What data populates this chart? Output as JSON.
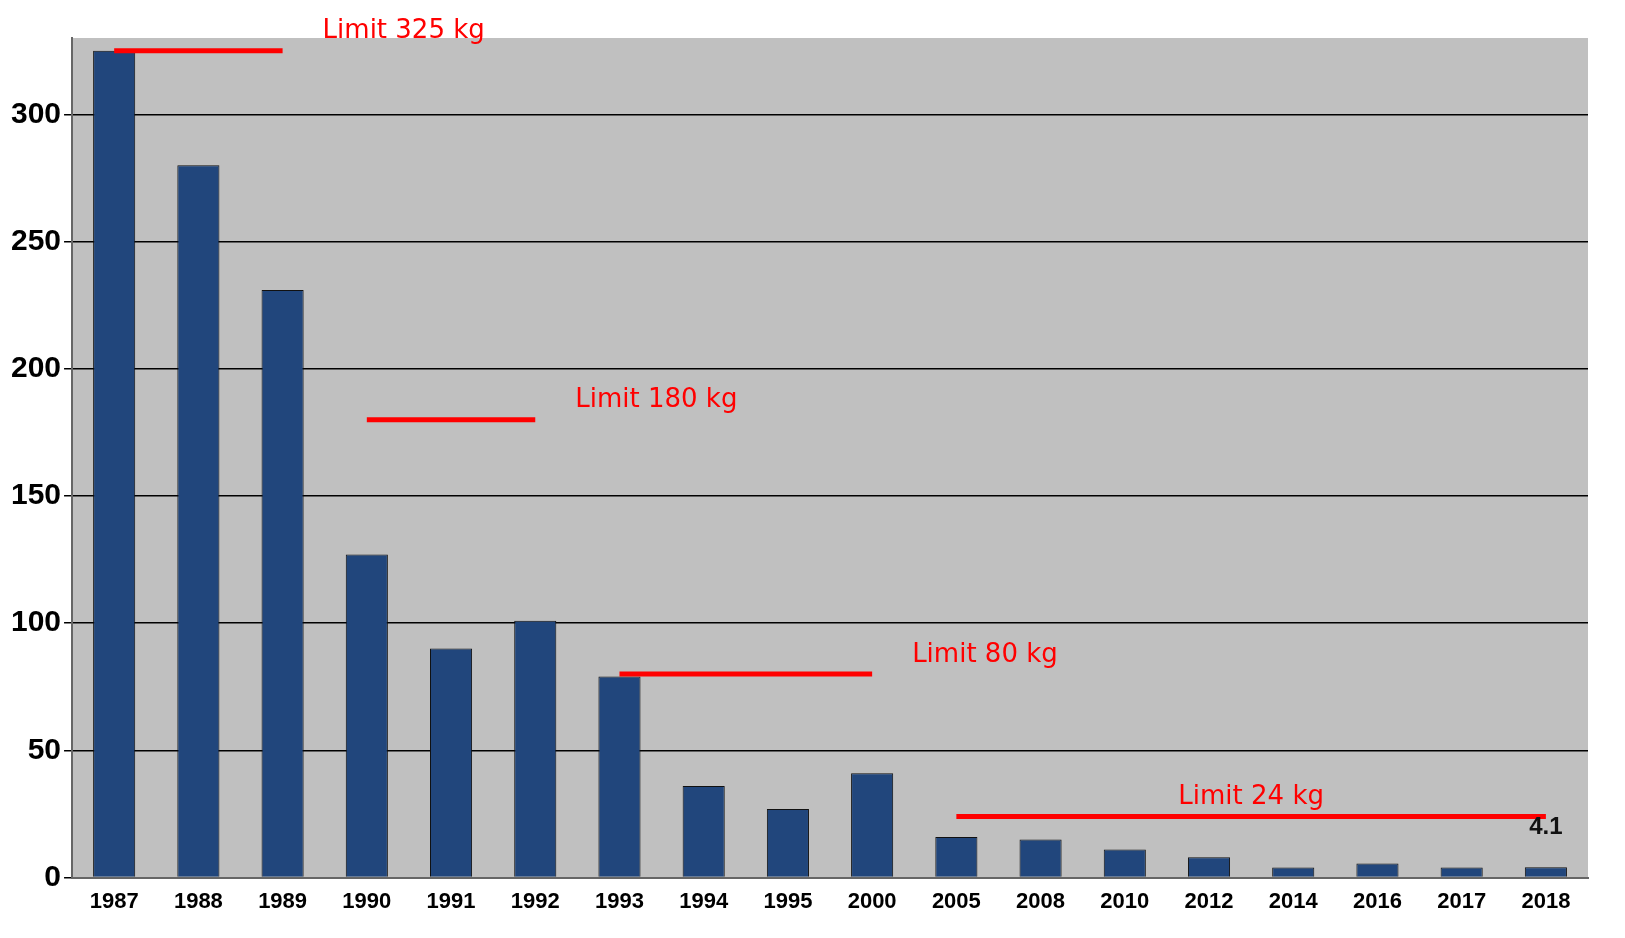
{
  "chart_data": {
    "type": "bar",
    "categories": [
      "1987",
      "1988",
      "1989",
      "1990",
      "1991",
      "1992",
      "1993",
      "1994",
      "1995",
      "2000",
      "2005",
      "2008",
      "2010",
      "2012",
      "2014",
      "2016",
      "2017",
      "2018"
    ],
    "series": [
      {
        "color": "#21467c",
        "values": [
          325,
          280,
          231,
          127,
          90,
          101,
          79,
          36,
          27,
          41,
          16,
          15,
          11,
          8,
          4,
          5.5,
          4,
          4.1
        ],
        "value_labels": [
          null,
          null,
          null,
          null,
          null,
          null,
          null,
          null,
          null,
          null,
          null,
          null,
          null,
          null,
          null,
          null,
          null,
          "4.1"
        ]
      },
      {
        "type": "line",
        "name": "Limit 325 kg",
        "color": "#ff0000",
        "values": [
          325,
          325,
          325,
          null,
          null,
          null,
          null,
          null,
          null,
          null,
          null,
          null,
          null,
          null,
          null,
          null,
          null,
          null
        ]
      },
      {
        "type": "line",
        "name": "Limit 180 kg",
        "color": "#ff0000",
        "values": [
          null,
          null,
          null,
          180,
          180,
          180,
          null,
          null,
          null,
          null,
          null,
          null,
          null,
          null,
          null,
          null,
          null,
          null
        ]
      },
      {
        "type": "line",
        "name": "Limit 80 kg",
        "color": "#ff0000",
        "values": [
          null,
          null,
          null,
          null,
          null,
          null,
          80,
          80,
          80,
          80,
          null,
          null,
          null,
          null,
          null,
          null,
          null,
          null
        ]
      },
      {
        "type": "line",
        "name": "Limit 24 kg",
        "color": "#ff0000",
        "values": [
          null,
          null,
          null,
          null,
          null,
          null,
          null,
          null,
          null,
          null,
          24,
          24,
          24,
          24,
          24,
          24,
          24,
          24
        ]
      }
    ],
    "ylim": [
      0,
      330
    ],
    "yticks": [
      0,
      50,
      100,
      150,
      200,
      250,
      300
    ],
    "grid": "y",
    "legend": false,
    "marker": "none",
    "line_style": "solid"
  }
}
